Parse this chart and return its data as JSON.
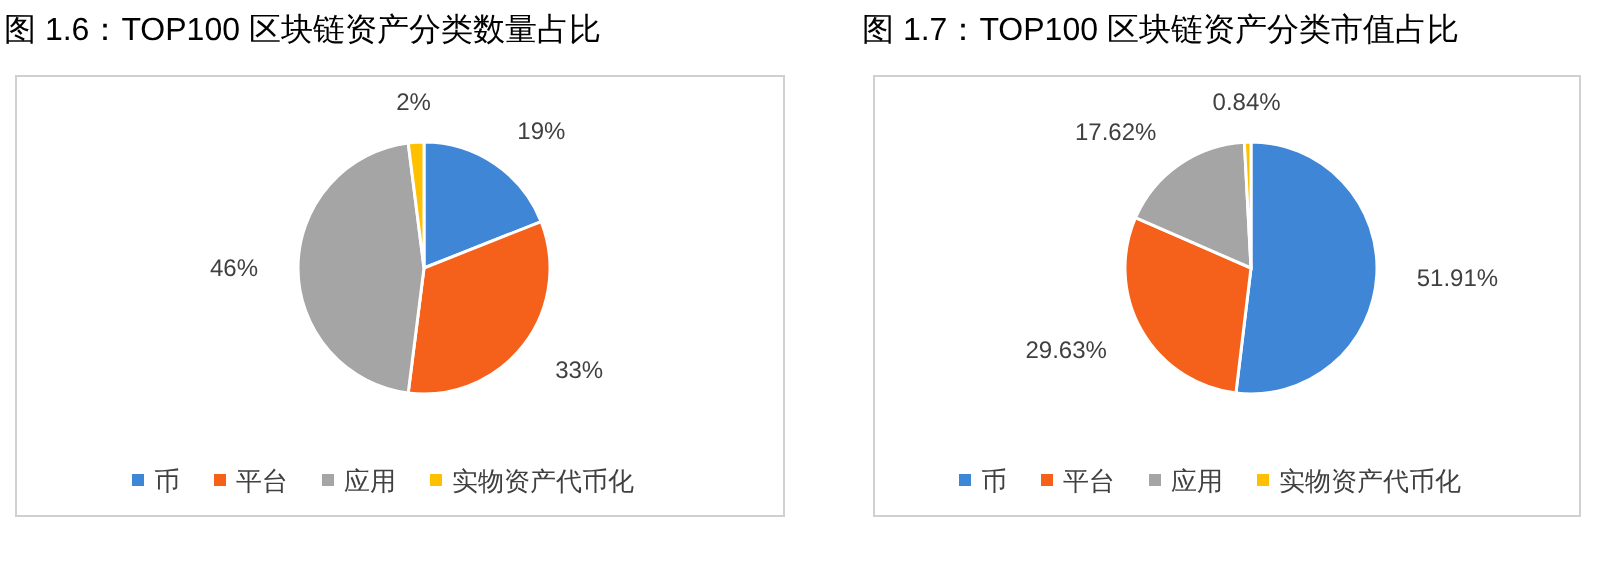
{
  "chart_data": [
    {
      "type": "pie",
      "title": "图 1.6：TOP100 区块链资产分类数量占比",
      "categories": [
        "币",
        "平台",
        "应用",
        "实物资产代币化"
      ],
      "values": [
        19,
        33,
        46,
        2
      ],
      "colors": [
        "#3f87d6",
        "#f5611a",
        "#a5a5a5",
        "#ffc000"
      ],
      "value_labels": [
        "19%",
        "33%",
        "46%",
        "2%"
      ],
      "legend": "bottom"
    },
    {
      "type": "pie",
      "title": "图 1.7：TOP100 区块链资产分类市值占比",
      "categories": [
        "币",
        "平台",
        "应用",
        "实物资产代币化"
      ],
      "values": [
        51.91,
        29.63,
        17.62,
        0.84
      ],
      "colors": [
        "#3f87d6",
        "#f5611a",
        "#a5a5a5",
        "#ffc000"
      ],
      "value_labels": [
        "51.91%",
        "29.63%",
        "17.62%",
        "0.84%"
      ],
      "legend": "bottom"
    }
  ]
}
